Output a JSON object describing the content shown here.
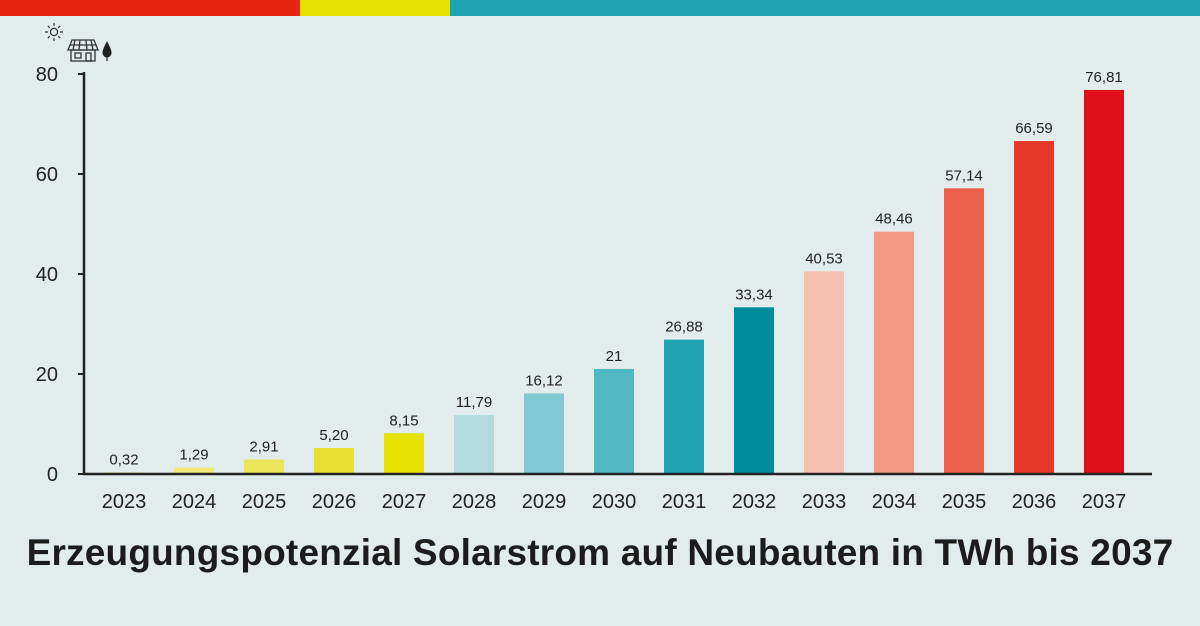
{
  "colors": {
    "topbar": [
      "#e8230f",
      "#e6e100",
      "#1fa3b3"
    ],
    "axis": "#222222",
    "text": "#222222",
    "background": "#e2ecec"
  },
  "icons": [
    "sun-icon",
    "house-solar-icon",
    "drop-icon"
  ],
  "chart_data": {
    "type": "bar",
    "title": "Erzeugungspotenzial Solarstrom auf Neubauten in TWh bis 2037",
    "categories": [
      "2023",
      "2024",
      "2025",
      "2026",
      "2027",
      "2028",
      "2029",
      "2030",
      "2031",
      "2032",
      "2033",
      "2034",
      "2035",
      "2036",
      "2037"
    ],
    "values": [
      0.32,
      1.29,
      2.91,
      5.2,
      8.15,
      11.79,
      16.12,
      21,
      26.88,
      33.34,
      40.53,
      48.46,
      57.14,
      66.59,
      76.81
    ],
    "labels": [
      "0,32",
      "1,29",
      "2,91",
      "5,20",
      "8,15",
      "11,79",
      "16,12",
      "21",
      "26,88",
      "33,34",
      "40,53",
      "48,46",
      "57,14",
      "66,59",
      "76,81"
    ],
    "bar_colors": [
      "#f5ee9e",
      "#f0e97a",
      "#ece65a",
      "#e8e030",
      "#e6e100",
      "#b3dbde",
      "#80c9d1",
      "#52b8c3",
      "#1fa3b3",
      "#008c9c",
      "#f6c0ae",
      "#f29a84",
      "#ec5f4b",
      "#e8382a",
      "#e0101a"
    ],
    "ylim": [
      0,
      80
    ],
    "yticks": [
      0,
      20,
      40,
      60,
      80
    ],
    "grid": false,
    "xlabel": "",
    "ylabel": ""
  }
}
